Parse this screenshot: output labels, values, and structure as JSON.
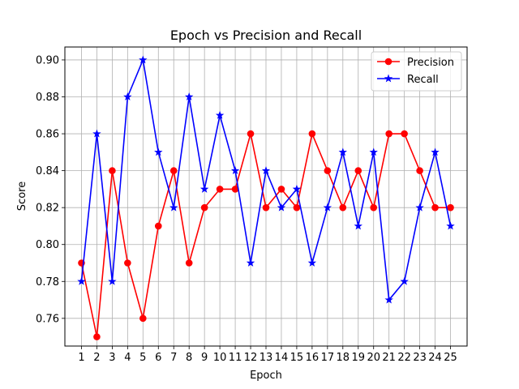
{
  "chart_data": {
    "type": "line",
    "title": "Epoch vs Precision and Recall",
    "xlabel": "Epoch",
    "ylabel": "Score",
    "x": [
      1,
      2,
      3,
      4,
      5,
      6,
      7,
      8,
      9,
      10,
      11,
      12,
      13,
      14,
      15,
      16,
      17,
      18,
      19,
      20,
      21,
      22,
      23,
      24,
      25
    ],
    "x_tick_labels": [
      "1",
      "2",
      "3",
      "4",
      "5",
      "6",
      "7",
      "8",
      "9",
      "10",
      "11",
      "12",
      "13",
      "14",
      "15",
      "16",
      "17",
      "18",
      "19",
      "20",
      "21",
      "22",
      "23",
      "24",
      "25"
    ],
    "ylim": [
      0.745,
      0.907
    ],
    "y_ticks": [
      0.76,
      0.78,
      0.8,
      0.82,
      0.84,
      0.86,
      0.88,
      0.9
    ],
    "y_tick_labels": [
      "0.76",
      "0.78",
      "0.80",
      "0.82",
      "0.84",
      "0.86",
      "0.88",
      "0.90"
    ],
    "grid": true,
    "legend_position": "top-right",
    "series": [
      {
        "name": "Precision",
        "color": "#ff0000",
        "marker": "circle",
        "values": [
          0.79,
          0.75,
          0.84,
          0.79,
          0.76,
          0.81,
          0.84,
          0.79,
          0.82,
          0.83,
          0.83,
          0.86,
          0.82,
          0.83,
          0.82,
          0.86,
          0.84,
          0.82,
          0.84,
          0.82,
          0.86,
          0.86,
          0.84,
          0.82,
          0.82
        ]
      },
      {
        "name": "Recall",
        "color": "#0000ff",
        "marker": "star",
        "values": [
          0.78,
          0.86,
          0.78,
          0.88,
          0.9,
          0.85,
          0.82,
          0.88,
          0.83,
          0.87,
          0.84,
          0.79,
          0.84,
          0.82,
          0.83,
          0.79,
          0.82,
          0.85,
          0.81,
          0.85,
          0.77,
          0.78,
          0.82,
          0.85,
          0.81
        ]
      }
    ]
  }
}
